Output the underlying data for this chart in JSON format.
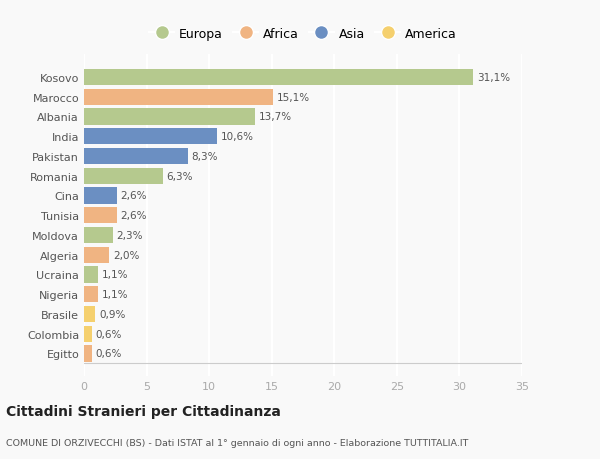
{
  "categories": [
    "Kosovo",
    "Marocco",
    "Albania",
    "India",
    "Pakistan",
    "Romania",
    "Cina",
    "Tunisia",
    "Moldova",
    "Algeria",
    "Ucraina",
    "Nigeria",
    "Brasile",
    "Colombia",
    "Egitto"
  ],
  "values": [
    31.1,
    15.1,
    13.7,
    10.6,
    8.3,
    6.3,
    2.6,
    2.6,
    2.3,
    2.0,
    1.1,
    1.1,
    0.9,
    0.6,
    0.6
  ],
  "labels": [
    "31,1%",
    "15,1%",
    "13,7%",
    "10,6%",
    "8,3%",
    "6,3%",
    "2,6%",
    "2,6%",
    "2,3%",
    "2,0%",
    "1,1%",
    "1,1%",
    "0,9%",
    "0,6%",
    "0,6%"
  ],
  "continent": [
    "Europa",
    "Africa",
    "Europa",
    "Asia",
    "Asia",
    "Europa",
    "Asia",
    "Africa",
    "Europa",
    "Africa",
    "Europa",
    "Africa",
    "America",
    "America",
    "Africa"
  ],
  "colors": {
    "Europa": "#b5c98e",
    "Africa": "#f0b482",
    "Asia": "#6b8fc2",
    "America": "#f5d06e"
  },
  "legend_order": [
    "Europa",
    "Africa",
    "Asia",
    "America"
  ],
  "xlim": [
    0,
    35
  ],
  "xticks": [
    0,
    5,
    10,
    15,
    20,
    25,
    30,
    35
  ],
  "title": "Cittadini Stranieri per Cittadinanza",
  "subtitle": "COMUNE DI ORZIVECCHI (BS) - Dati ISTAT al 1° gennaio di ogni anno - Elaborazione TUTTITALIA.IT",
  "background_color": "#f9f9f9",
  "grid_color": "#ffffff",
  "bar_height": 0.82
}
